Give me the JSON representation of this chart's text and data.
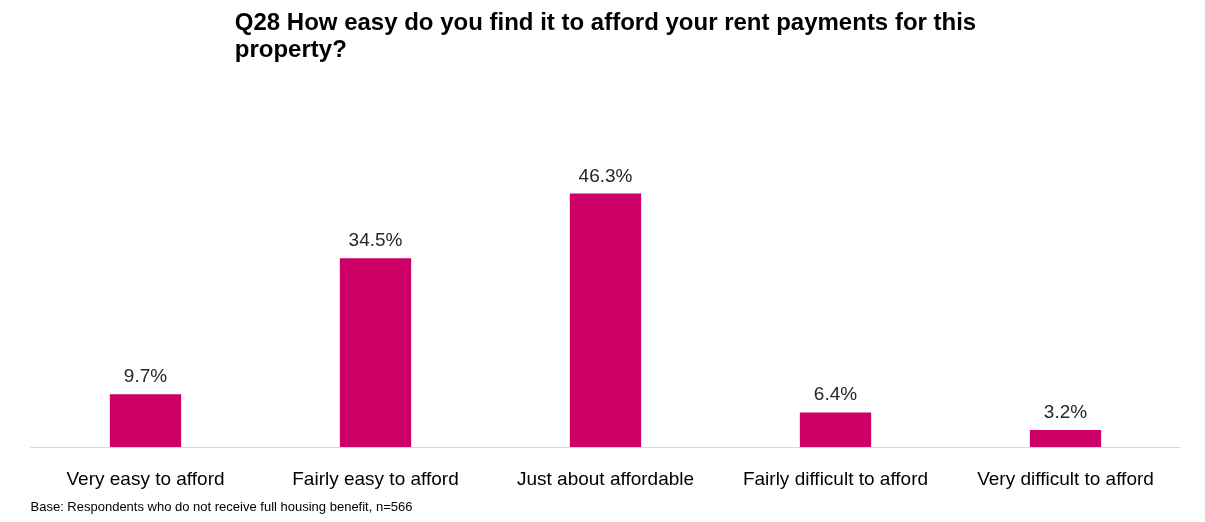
{
  "chart_data": {
    "type": "bar",
    "title": "Q28 How easy do you find it to afford your rent payments for this property?",
    "categories": [
      "Very easy to afford",
      "Fairly easy to afford",
      "Just about affordable",
      "Fairly difficult to afford",
      "Very difficult to afford"
    ],
    "values": [
      9.7,
      34.5,
      46.3,
      6.4,
      3.2
    ],
    "value_labels": [
      "9.7%",
      "34.5%",
      "46.3%",
      "6.4%",
      "3.2%"
    ],
    "color": "#cc0066",
    "grid": false,
    "annotations": [
      "Base: Respondents who do not receive full housing benefit, n=566"
    ]
  }
}
